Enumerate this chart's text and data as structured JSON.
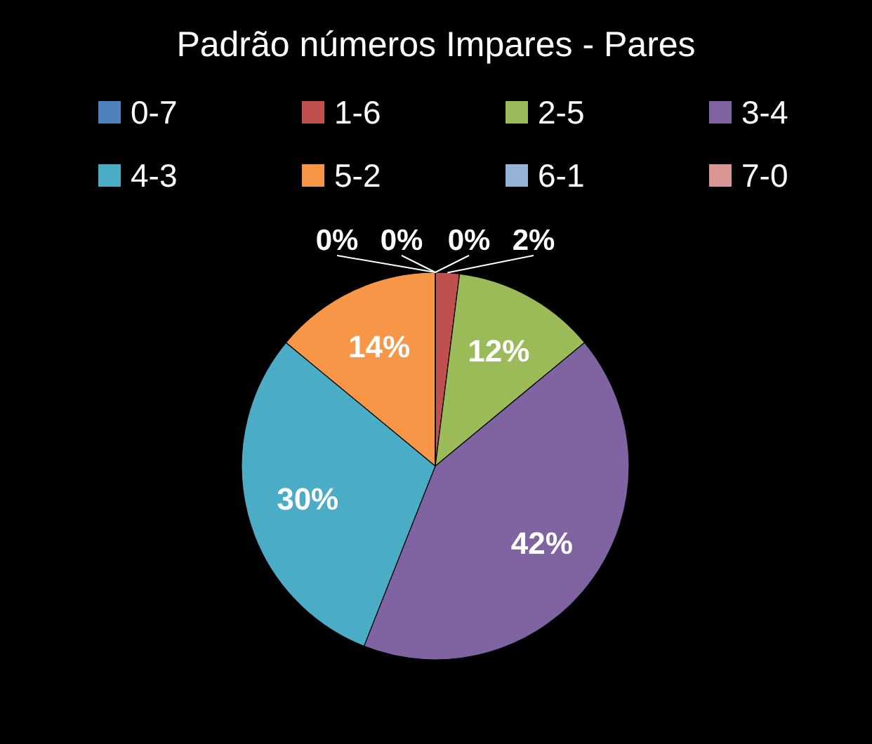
{
  "chart_data": {
    "type": "pie",
    "title": "Padrão números Impares - Pares",
    "categories": [
      "0-7",
      "1-6",
      "2-5",
      "3-4",
      "4-3",
      "5-2",
      "6-1",
      "7-0"
    ],
    "values": [
      0,
      2,
      12,
      42,
      30,
      14,
      0,
      0
    ],
    "value_labels": [
      "0%",
      "2%",
      "12%",
      "42%",
      "30%",
      "14%",
      "0%",
      "0%"
    ],
    "colors": [
      "#4f81bd",
      "#c0504d",
      "#9bbb59",
      "#8064a2",
      "#4bacc6",
      "#f79646",
      "#95b3d7",
      "#d99694"
    ],
    "legend": "top"
  }
}
